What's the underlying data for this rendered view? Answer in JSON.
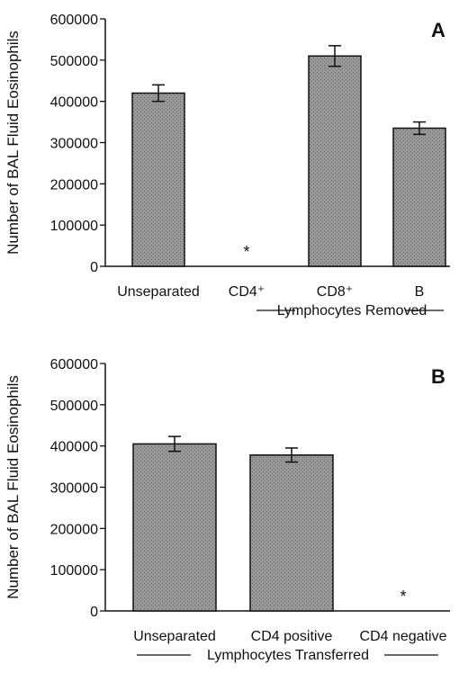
{
  "chart_data": [
    {
      "type": "bar",
      "panel_label": "A",
      "ylabel": "Number of BAL Fluid Eosinophils",
      "ylim": [
        0,
        600000
      ],
      "yticks": [
        "0",
        "100000",
        "200000",
        "300000",
        "400000",
        "500000",
        "600000"
      ],
      "categories": [
        "Unseparated",
        "CD4⁺",
        "CD8⁺",
        "B"
      ],
      "values": [
        420000,
        0,
        510000,
        335000
      ],
      "errors": [
        20000,
        0,
        25000,
        15000
      ],
      "annotations": [
        "",
        "*",
        "",
        ""
      ],
      "group_label": "Lymphocytes Removed",
      "bar_color": "#8c8c8c"
    },
    {
      "type": "bar",
      "panel_label": "B",
      "ylabel": "Number of BAL Fluid Eosinophils",
      "ylim": [
        0,
        600000
      ],
      "yticks": [
        "0",
        "100000",
        "200000",
        "300000",
        "400000",
        "500000",
        "600000"
      ],
      "categories": [
        "Unseparated",
        "CD4 positive",
        "CD4 negative"
      ],
      "values": [
        405000,
        378000,
        0
      ],
      "errors": [
        18000,
        17000,
        0
      ],
      "annotations": [
        "",
        "",
        "*"
      ],
      "group_label": "Lymphocytes Transferred",
      "bar_color": "#8c8c8c"
    }
  ]
}
